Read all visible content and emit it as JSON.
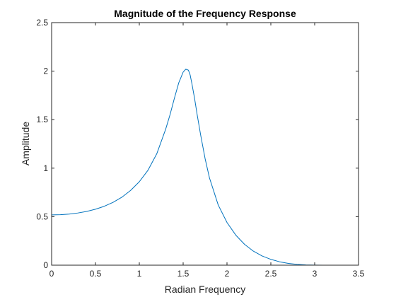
{
  "chart_data": {
    "type": "line",
    "title": "Magnitude of the Frequency Response",
    "xlabel": "Radian Frequency",
    "ylabel": "Amplitude",
    "xlim": [
      0,
      3.5
    ],
    "ylim": [
      0,
      2.5
    ],
    "xticks": [
      0,
      0.5,
      1,
      1.5,
      2,
      2.5,
      3,
      3.5
    ],
    "xtick_labels": [
      "0",
      "0.5",
      "1",
      "1.5",
      "2",
      "2.5",
      "3",
      "3.5"
    ],
    "yticks": [
      0,
      0.5,
      1,
      1.5,
      2,
      2.5
    ],
    "ytick_labels": [
      "0",
      "0.5",
      "1",
      "1.5",
      "2",
      "2.5"
    ],
    "grid": false,
    "box": true,
    "line_color": "#0072BD",
    "axis_color": "#262626",
    "series": [
      {
        "x": [
          0,
          0.1,
          0.2,
          0.3,
          0.4,
          0.5,
          0.6,
          0.7,
          0.8,
          0.9,
          1.0,
          1.1,
          1.2,
          1.3,
          1.35,
          1.4,
          1.45,
          1.5,
          1.53,
          1.56,
          1.58,
          1.6,
          1.63,
          1.66,
          1.7,
          1.75,
          1.8,
          1.9,
          2.0,
          2.1,
          2.2,
          2.3,
          2.4,
          2.5,
          2.6,
          2.7,
          2.8,
          2.9,
          3.0,
          3.1,
          3.1416
        ],
        "y": [
          0.518,
          0.52,
          0.527,
          0.538,
          0.554,
          0.577,
          0.607,
          0.647,
          0.7,
          0.77,
          0.86,
          0.98,
          1.15,
          1.4,
          1.55,
          1.72,
          1.88,
          1.99,
          2.02,
          2.01,
          1.96,
          1.87,
          1.72,
          1.55,
          1.34,
          1.1,
          0.9,
          0.62,
          0.44,
          0.31,
          0.215,
          0.145,
          0.095,
          0.06,
          0.035,
          0.018,
          0.008,
          0.003,
          0.001,
          0.0,
          0.0
        ]
      }
    ]
  }
}
